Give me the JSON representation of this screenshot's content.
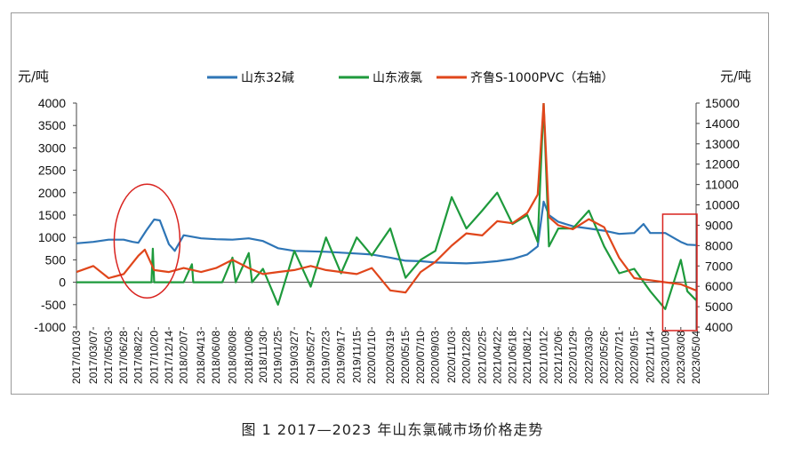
{
  "caption": "图 1  2017—2023 年山东氯碱市场价格走势",
  "chart_data": {
    "type": "line",
    "title": "",
    "y_left_unit": "元/吨",
    "y_right_unit": "元/吨",
    "ylim_left": [
      -1000,
      4000
    ],
    "ylim_right": [
      4000,
      15000
    ],
    "yticks_left": [
      "4000",
      "3500",
      "3000",
      "2500",
      "2000",
      "1500",
      "1000",
      "500",
      "0",
      "-500",
      "-1000"
    ],
    "yticks_right": [
      "15000",
      "14000",
      "13000",
      "12000",
      "11000",
      "10000",
      "9000",
      "8000",
      "7000",
      "6000",
      "5000",
      "4000"
    ],
    "x_start": "2017/01/03",
    "x_end": "2023/05/04",
    "xticks": [
      "2017/01/03",
      "2017/03/07",
      "2017/05/03",
      "2017/06/28",
      "2017/08/22",
      "2017/10/20",
      "2017/12/14",
      "2018/02/07",
      "2018/04/13",
      "2018/06/08",
      "2018/08/08",
      "2018/10/08",
      "2018/11/30",
      "2019/01/25",
      "2019/03/27",
      "2019/05/27",
      "2019/07/23",
      "2019/09/17",
      "2019/11/15",
      "2020/01/10",
      "2020/03/19",
      "2020/05/15",
      "2020/07/10",
      "2020/09/03",
      "2020/11/03",
      "2020/12/28",
      "2021/02/25",
      "2021/04/22",
      "2021/06/18",
      "2021/08/12",
      "2021/10/12",
      "2021/12/06",
      "2022/01/29",
      "2022/03/30",
      "2022/05/26",
      "2022/07/21",
      "2022/09/15",
      "2022/11/14",
      "2023/01/09",
      "2023/03/08",
      "2023/05/04"
    ],
    "grid": false,
    "legend_position": "top",
    "series": [
      {
        "name": "山东32碱",
        "axis": "left",
        "color": "#2e75b6",
        "points": [
          [
            "2017/01/03",
            870
          ],
          [
            "2017/03/07",
            900
          ],
          [
            "2017/05/03",
            950
          ],
          [
            "2017/06/28",
            950
          ],
          [
            "2017/08/01",
            900
          ],
          [
            "2017/08/22",
            880
          ],
          [
            "2017/09/20",
            1150
          ],
          [
            "2017/10/20",
            1400
          ],
          [
            "2017/11/10",
            1380
          ],
          [
            "2017/12/14",
            850
          ],
          [
            "2018/01/05",
            700
          ],
          [
            "2018/02/07",
            1050
          ],
          [
            "2018/04/13",
            980
          ],
          [
            "2018/06/08",
            960
          ],
          [
            "2018/08/08",
            950
          ],
          [
            "2018/10/08",
            980
          ],
          [
            "2018/11/30",
            920
          ],
          [
            "2019/01/25",
            760
          ],
          [
            "2019/03/27",
            700
          ],
          [
            "2019/05/27",
            690
          ],
          [
            "2019/07/23",
            680
          ],
          [
            "2019/09/17",
            660
          ],
          [
            "2019/11/15",
            640
          ],
          [
            "2020/01/10",
            620
          ],
          [
            "2020/03/19",
            550
          ],
          [
            "2020/05/15",
            480
          ],
          [
            "2020/07/10",
            470
          ],
          [
            "2020/09/03",
            440
          ],
          [
            "2020/11/03",
            430
          ],
          [
            "2020/12/28",
            420
          ],
          [
            "2021/02/25",
            440
          ],
          [
            "2021/04/22",
            470
          ],
          [
            "2021/06/18",
            520
          ],
          [
            "2021/08/12",
            620
          ],
          [
            "2021/09/20",
            800
          ],
          [
            "2021/10/12",
            1800
          ],
          [
            "2021/11/01",
            1500
          ],
          [
            "2021/12/06",
            1350
          ],
          [
            "2022/01/29",
            1250
          ],
          [
            "2022/03/30",
            1200
          ],
          [
            "2022/05/26",
            1150
          ],
          [
            "2022/07/21",
            1080
          ],
          [
            "2022/09/15",
            1100
          ],
          [
            "2022/10/20",
            1300
          ],
          [
            "2022/11/14",
            1100
          ],
          [
            "2023/01/09",
            1100
          ],
          [
            "2023/03/08",
            900
          ],
          [
            "2023/04/01",
            840
          ],
          [
            "2023/05/04",
            830
          ]
        ]
      },
      {
        "name": "山东液氯",
        "axis": "left",
        "color": "#1e9a3c",
        "points": [
          [
            "2017/01/03",
            0
          ],
          [
            "2017/10/10",
            0
          ],
          [
            "2017/10/15",
            750
          ],
          [
            "2017/10/20",
            0
          ],
          [
            "2018/02/07",
            0
          ],
          [
            "2018/03/10",
            400
          ],
          [
            "2018/03/15",
            0
          ],
          [
            "2018/07/01",
            0
          ],
          [
            "2018/08/08",
            550
          ],
          [
            "2018/08/20",
            0
          ],
          [
            "2018/10/08",
            650
          ],
          [
            "2018/10/20",
            0
          ],
          [
            "2018/11/30",
            300
          ],
          [
            "2019/01/25",
            -500
          ],
          [
            "2019/03/27",
            700
          ],
          [
            "2019/05/27",
            -100
          ],
          [
            "2019/07/23",
            1000
          ],
          [
            "2019/09/17",
            200
          ],
          [
            "2019/11/15",
            1000
          ],
          [
            "2020/01/10",
            600
          ],
          [
            "2020/03/19",
            1200
          ],
          [
            "2020/05/15",
            100
          ],
          [
            "2020/07/10",
            500
          ],
          [
            "2020/09/03",
            700
          ],
          [
            "2020/11/03",
            1900
          ],
          [
            "2020/12/28",
            1200
          ],
          [
            "2021/02/25",
            1600
          ],
          [
            "2021/04/22",
            2000
          ],
          [
            "2021/06/18",
            1300
          ],
          [
            "2021/08/12",
            1500
          ],
          [
            "2021/09/20",
            900
          ],
          [
            "2021/10/12",
            4000
          ],
          [
            "2021/11/01",
            800
          ],
          [
            "2021/12/06",
            1200
          ],
          [
            "2022/01/29",
            1200
          ],
          [
            "2022/03/30",
            1600
          ],
          [
            "2022/05/26",
            800
          ],
          [
            "2022/07/21",
            200
          ],
          [
            "2022/09/15",
            300
          ],
          [
            "2022/11/14",
            -200
          ],
          [
            "2023/01/09",
            -600
          ],
          [
            "2023/03/08",
            500
          ],
          [
            "2023/04/01",
            -200
          ],
          [
            "2023/05/04",
            -400
          ]
        ]
      },
      {
        "name": "齐鲁S-1000PVC（右轴）",
        "axis": "right",
        "color": "#e0461b",
        "points": [
          [
            "2017/01/03",
            6700
          ],
          [
            "2017/03/07",
            7000
          ],
          [
            "2017/05/03",
            6400
          ],
          [
            "2017/06/28",
            6600
          ],
          [
            "2017/08/22",
            7500
          ],
          [
            "2017/09/15",
            7800
          ],
          [
            "2017/10/20",
            6800
          ],
          [
            "2017/12/14",
            6700
          ],
          [
            "2018/02/07",
            6900
          ],
          [
            "2018/04/13",
            6700
          ],
          [
            "2018/06/08",
            6900
          ],
          [
            "2018/08/08",
            7300
          ],
          [
            "2018/10/08",
            6900
          ],
          [
            "2018/11/30",
            6600
          ],
          [
            "2019/01/25",
            6700
          ],
          [
            "2019/03/27",
            6800
          ],
          [
            "2019/05/27",
            7000
          ],
          [
            "2019/07/23",
            6800
          ],
          [
            "2019/09/17",
            6700
          ],
          [
            "2019/11/15",
            6600
          ],
          [
            "2020/01/10",
            6900
          ],
          [
            "2020/03/19",
            5800
          ],
          [
            "2020/05/15",
            5700
          ],
          [
            "2020/07/10",
            6700
          ],
          [
            "2020/09/03",
            7200
          ],
          [
            "2020/11/03",
            8000
          ],
          [
            "2020/12/28",
            8600
          ],
          [
            "2021/02/25",
            8500
          ],
          [
            "2021/04/22",
            9200
          ],
          [
            "2021/06/18",
            9100
          ],
          [
            "2021/08/12",
            9600
          ],
          [
            "2021/09/20",
            10500
          ],
          [
            "2021/10/12",
            15000
          ],
          [
            "2021/11/01",
            9400
          ],
          [
            "2021/12/06",
            9000
          ],
          [
            "2022/01/29",
            8800
          ],
          [
            "2022/03/30",
            9300
          ],
          [
            "2022/05/26",
            8900
          ],
          [
            "2022/07/21",
            7400
          ],
          [
            "2022/09/15",
            6400
          ],
          [
            "2022/11/14",
            6300
          ],
          [
            "2023/01/09",
            6200
          ],
          [
            "2023/03/08",
            6100
          ],
          [
            "2023/05/04",
            5800
          ]
        ]
      }
    ],
    "highlights": [
      {
        "shape": "ellipse",
        "color": "#d9231f",
        "x_center": "2017/10/20",
        "y_center": 1000
      },
      {
        "shape": "rect",
        "color": "#d9231f",
        "x_from": "2022/11/14",
        "x_to": "2023/05/04"
      }
    ]
  }
}
